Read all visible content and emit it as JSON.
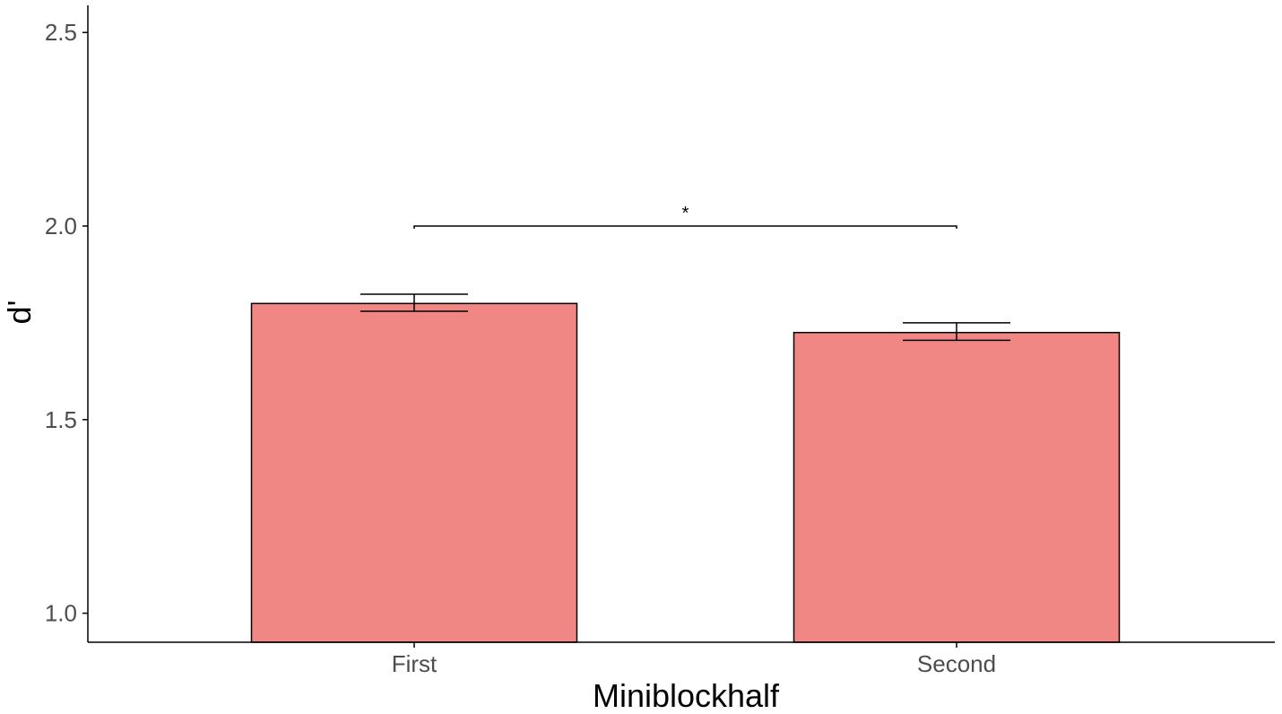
{
  "chart_data": {
    "type": "bar",
    "xlabel": "Miniblockhalf",
    "ylabel": "d'",
    "categories": [
      "First",
      "Second"
    ],
    "values": [
      1.8,
      1.725
    ],
    "error_bars": [
      {
        "lower": 1.78,
        "upper": 1.824
      },
      {
        "lower": 1.705,
        "upper": 1.75
      }
    ],
    "ylim": [
      0.925,
      2.57
    ],
    "yticks": [
      1.0,
      1.5,
      2.0,
      2.5
    ],
    "ytick_labels": [
      "1.0",
      "1.5",
      "2.0",
      "2.5"
    ],
    "significance": {
      "from": "First",
      "to": "Second",
      "y": 2.0,
      "label": "*"
    },
    "grid": false,
    "legend": "none",
    "colors": {
      "bar_fill": "#f08784",
      "bar_stroke": "#000000",
      "axis": "#000000",
      "tick_text": "#4d4d4d"
    }
  }
}
